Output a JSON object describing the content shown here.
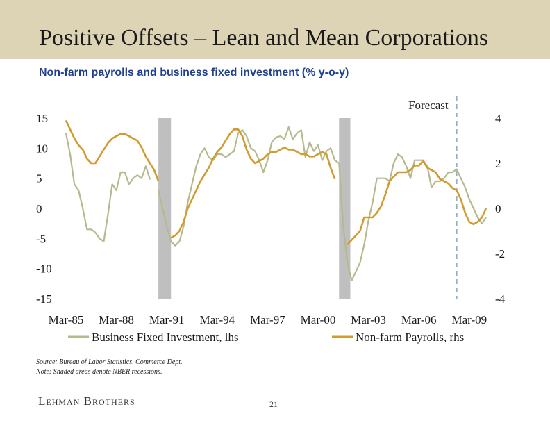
{
  "header": {
    "title": "Positive Offsets – Lean and Mean Corporations",
    "subtitle": "Non-farm payrolls and business fixed investment (% y-o-y)"
  },
  "footer": {
    "source": "Source: Bureau of Labor Statistics, Commerce Dept.",
    "note": "Note: Shaded areas denote NBER recessions.",
    "brand": "Lehman Brothers",
    "page_number": "21"
  },
  "colors": {
    "title_band": "#ddd4b6",
    "subtitle": "#1f3f8f",
    "bfi_line": "#b5b98b",
    "payroll_line": "#d29b2e",
    "recession": "#bfbfbf",
    "forecast_line": "#8fb3c7"
  },
  "chart_data": {
    "type": "line",
    "x_tick_labels": [
      "Mar-85",
      "Mar-88",
      "Mar-91",
      "Mar-94",
      "Mar-97",
      "Mar-00",
      "Mar-03",
      "Mar-06",
      "Mar-09"
    ],
    "x_range": [
      1985.0,
      2010.0
    ],
    "y_left_range": [
      -15,
      15
    ],
    "y_left_ticks": [
      "15",
      "10",
      "5",
      "0",
      "-5",
      "-10",
      "-15"
    ],
    "y_right_range": [
      -4,
      4
    ],
    "y_right_ticks": [
      "4",
      "2",
      "0",
      "-2",
      "-4"
    ],
    "forecast_label": "Forecast",
    "forecast_start": 2008.25,
    "recessions": [
      [
        1990.5,
        1991.25
      ],
      [
        2001.25,
        2001.92
      ]
    ],
    "grid": false,
    "legend_position": "bottom",
    "series": [
      {
        "name": "Business Fixed Investment, lhs",
        "axis": "left",
        "points": [
          [
            1985.0,
            12.5
          ],
          [
            1985.25,
            9
          ],
          [
            1985.5,
            4
          ],
          [
            1985.75,
            3
          ],
          [
            1986.0,
            0
          ],
          [
            1986.25,
            -3.5
          ],
          [
            1986.5,
            -3.5
          ],
          [
            1986.75,
            -4
          ],
          [
            1987.0,
            -5
          ],
          [
            1987.25,
            -5.5
          ],
          [
            1987.5,
            -1
          ],
          [
            1987.75,
            4
          ],
          [
            1988.0,
            3
          ],
          [
            1988.25,
            6
          ],
          [
            1988.5,
            6
          ],
          [
            1988.75,
            4
          ],
          [
            1989.0,
            5
          ],
          [
            1989.25,
            5.5
          ],
          [
            1989.5,
            5
          ],
          [
            1989.75,
            7
          ],
          [
            1990.0,
            4.8
          ],
          [
            1990.5,
            3
          ],
          [
            1990.75,
            0
          ],
          [
            1991.0,
            -3
          ],
          [
            1991.25,
            -5.5
          ],
          [
            1991.5,
            -6.2
          ],
          [
            1991.75,
            -5.5
          ],
          [
            1992.0,
            -3
          ],
          [
            1992.25,
            1
          ],
          [
            1992.5,
            4
          ],
          [
            1992.75,
            7
          ],
          [
            1993.0,
            9
          ],
          [
            1993.25,
            10
          ],
          [
            1993.5,
            8.5
          ],
          [
            1993.75,
            8
          ],
          [
            1994.0,
            9
          ],
          [
            1994.25,
            9
          ],
          [
            1994.5,
            8.5
          ],
          [
            1994.75,
            9
          ],
          [
            1995.0,
            9.5
          ],
          [
            1995.25,
            12.5
          ],
          [
            1995.5,
            13
          ],
          [
            1995.75,
            12
          ],
          [
            1996.0,
            10
          ],
          [
            1996.25,
            9.5
          ],
          [
            1996.5,
            8
          ],
          [
            1996.75,
            6
          ],
          [
            1997.0,
            8
          ],
          [
            1997.25,
            11
          ],
          [
            1997.5,
            11.8
          ],
          [
            1997.75,
            12
          ],
          [
            1998.0,
            11.5
          ],
          [
            1998.25,
            13.5
          ],
          [
            1998.5,
            11.5
          ],
          [
            1998.75,
            12.5
          ],
          [
            1999.0,
            13
          ],
          [
            1999.25,
            8.5
          ],
          [
            1999.5,
            11
          ],
          [
            1999.75,
            9.5
          ],
          [
            2000.0,
            10.5
          ],
          [
            2000.25,
            8
          ],
          [
            2000.5,
            9.5
          ],
          [
            2000.75,
            10
          ],
          [
            2001.0,
            8
          ],
          [
            2001.25,
            7.5
          ],
          [
            2001.5,
            -3
          ],
          [
            2001.75,
            -9
          ],
          [
            2002.0,
            -12
          ],
          [
            2002.25,
            -10.5
          ],
          [
            2002.5,
            -9
          ],
          [
            2002.75,
            -6
          ],
          [
            2003.0,
            -2
          ],
          [
            2003.25,
            1
          ],
          [
            2003.5,
            5
          ],
          [
            2003.75,
            5
          ],
          [
            2004.0,
            5
          ],
          [
            2004.25,
            4.5
          ],
          [
            2004.5,
            7.5
          ],
          [
            2004.75,
            9
          ],
          [
            2005.0,
            8.5
          ],
          [
            2005.25,
            7
          ],
          [
            2005.5,
            5
          ],
          [
            2005.75,
            8
          ],
          [
            2006.0,
            8
          ],
          [
            2006.25,
            8
          ],
          [
            2006.5,
            7
          ],
          [
            2006.75,
            3.5
          ],
          [
            2007.0,
            4.5
          ],
          [
            2007.25,
            4.5
          ],
          [
            2007.5,
            5
          ],
          [
            2007.75,
            6
          ],
          [
            2008.0,
            6
          ],
          [
            2008.25,
            6.5
          ],
          [
            2008.5,
            5
          ],
          [
            2008.75,
            3.5
          ],
          [
            2009.0,
            1.5
          ],
          [
            2009.25,
            0
          ],
          [
            2009.5,
            -1.5
          ],
          [
            2009.75,
            -2.5
          ],
          [
            2010.0,
            -1.5
          ]
        ]
      },
      {
        "name": "Non-farm Payrolls, rhs",
        "axis": "right",
        "points": [
          [
            1985.0,
            3.9
          ],
          [
            1985.25,
            3.5
          ],
          [
            1985.5,
            3.1
          ],
          [
            1985.75,
            2.8
          ],
          [
            1986.0,
            2.6
          ],
          [
            1986.25,
            2.2
          ],
          [
            1986.5,
            2.0
          ],
          [
            1986.75,
            2.0
          ],
          [
            1987.0,
            2.3
          ],
          [
            1987.25,
            2.6
          ],
          [
            1987.5,
            2.9
          ],
          [
            1987.75,
            3.1
          ],
          [
            1988.0,
            3.2
          ],
          [
            1988.25,
            3.3
          ],
          [
            1988.5,
            3.3
          ],
          [
            1988.75,
            3.2
          ],
          [
            1989.0,
            3.1
          ],
          [
            1989.25,
            3.0
          ],
          [
            1989.5,
            2.7
          ],
          [
            1989.75,
            2.3
          ],
          [
            1990.0,
            2.0
          ],
          [
            1990.25,
            1.7
          ],
          [
            1990.5,
            1.2
          ],
          [
            1991.25,
            -1.3
          ],
          [
            1991.5,
            -1.2
          ],
          [
            1991.75,
            -1.0
          ],
          [
            1992.0,
            -0.6
          ],
          [
            1992.25,
            0.0
          ],
          [
            1992.5,
            0.4
          ],
          [
            1992.75,
            0.8
          ],
          [
            1993.0,
            1.2
          ],
          [
            1993.25,
            1.5
          ],
          [
            1993.5,
            1.8
          ],
          [
            1993.75,
            2.2
          ],
          [
            1994.0,
            2.5
          ],
          [
            1994.25,
            2.7
          ],
          [
            1994.5,
            3.0
          ],
          [
            1994.75,
            3.3
          ],
          [
            1995.0,
            3.5
          ],
          [
            1995.25,
            3.5
          ],
          [
            1995.5,
            3.2
          ],
          [
            1995.75,
            2.6
          ],
          [
            1996.0,
            2.2
          ],
          [
            1996.25,
            2.0
          ],
          [
            1996.5,
            2.1
          ],
          [
            1996.75,
            2.2
          ],
          [
            1997.0,
            2.4
          ],
          [
            1997.25,
            2.5
          ],
          [
            1997.5,
            2.5
          ],
          [
            1997.75,
            2.6
          ],
          [
            1998.0,
            2.7
          ],
          [
            1998.25,
            2.6
          ],
          [
            1998.5,
            2.6
          ],
          [
            1998.75,
            2.5
          ],
          [
            1999.0,
            2.4
          ],
          [
            1999.25,
            2.4
          ],
          [
            1999.5,
            2.3
          ],
          [
            1999.75,
            2.3
          ],
          [
            2000.0,
            2.4
          ],
          [
            2000.25,
            2.5
          ],
          [
            2000.5,
            2.4
          ],
          [
            2000.75,
            1.8
          ],
          [
            2001.0,
            1.3
          ],
          [
            2001.75,
            -1.6
          ],
          [
            2002.0,
            -1.4
          ],
          [
            2002.25,
            -1.2
          ],
          [
            2002.5,
            -1.0
          ],
          [
            2002.75,
            -0.4
          ],
          [
            2003.0,
            -0.4
          ],
          [
            2003.25,
            -0.4
          ],
          [
            2003.5,
            -0.2
          ],
          [
            2003.75,
            0.1
          ],
          [
            2004.0,
            0.6
          ],
          [
            2004.25,
            1.2
          ],
          [
            2004.5,
            1.4
          ],
          [
            2004.75,
            1.6
          ],
          [
            2005.0,
            1.6
          ],
          [
            2005.25,
            1.6
          ],
          [
            2005.5,
            1.7
          ],
          [
            2005.75,
            1.9
          ],
          [
            2006.0,
            1.9
          ],
          [
            2006.25,
            2.1
          ],
          [
            2006.5,
            1.8
          ],
          [
            2006.75,
            1.7
          ],
          [
            2007.0,
            1.6
          ],
          [
            2007.25,
            1.3
          ],
          [
            2007.5,
            1.2
          ],
          [
            2007.75,
            1.1
          ],
          [
            2008.0,
            0.9
          ],
          [
            2008.25,
            0.8
          ],
          [
            2008.5,
            0.4
          ],
          [
            2008.75,
            -0.2
          ],
          [
            2009.0,
            -0.6
          ],
          [
            2009.25,
            -0.7
          ],
          [
            2009.5,
            -0.6
          ],
          [
            2009.75,
            -0.4
          ],
          [
            2010.0,
            0.0
          ]
        ]
      }
    ]
  }
}
